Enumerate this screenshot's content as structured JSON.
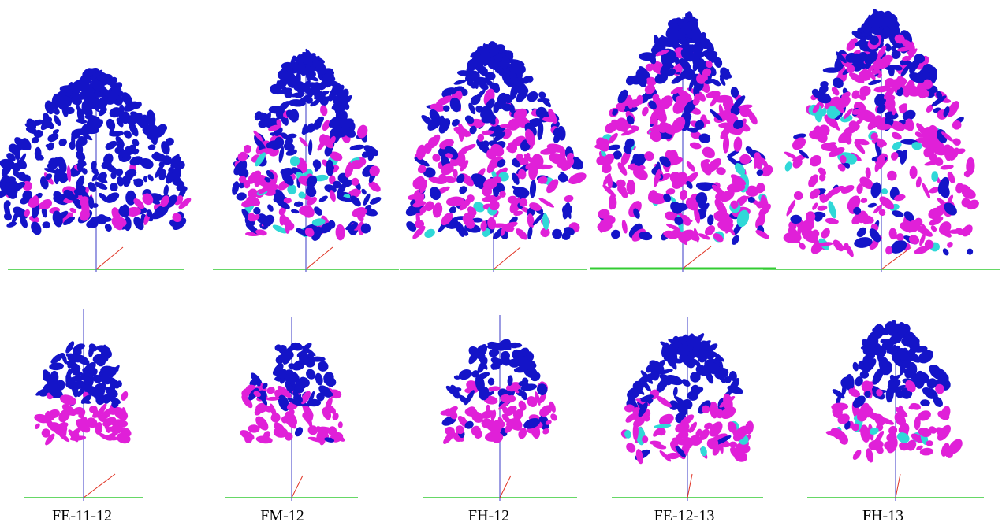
{
  "captions": [
    "FE-11-12",
    "FM-12",
    "FH-12",
    "FE-12-13",
    "FH-13"
  ],
  "colors": {
    "leaf_mature": "#1414c8",
    "leaf_young": "#e020d8",
    "leaf_new": "#30d8d8",
    "stem": "#5a5ad0",
    "ground": "#33cc33",
    "axis": "#e03020"
  }
}
